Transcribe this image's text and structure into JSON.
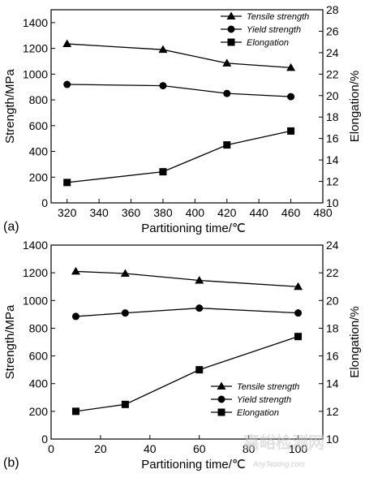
{
  "chart_data": [
    {
      "type": "line",
      "panel_label": "(a)",
      "xlabel": "Partitioning time/℃",
      "ylabel_left": "Strength/MPa",
      "ylabel_right": "Elongation/%",
      "xlim": [
        310,
        480
      ],
      "x_ticks": [
        320,
        340,
        360,
        380,
        400,
        420,
        440,
        460,
        480
      ],
      "ylim_left": [
        0,
        1500
      ],
      "y_ticks_left": [
        0,
        200,
        400,
        600,
        800,
        1000,
        1200,
        1400
      ],
      "ylim_right": [
        10,
        28
      ],
      "y_ticks_right": [
        10,
        12,
        14,
        16,
        18,
        20,
        22,
        24,
        26,
        28
      ],
      "legend_position": "top-right",
      "x": [
        320,
        380,
        420,
        460
      ],
      "series": [
        {
          "name": "Tensile strength",
          "axis": "left",
          "marker": "triangle",
          "values": [
            1235,
            1190,
            1085,
            1050
          ]
        },
        {
          "name": "Yield strength",
          "axis": "left",
          "marker": "circle",
          "values": [
            920,
            910,
            850,
            825
          ]
        },
        {
          "name": "Elongation",
          "axis": "right",
          "marker": "square",
          "values": [
            11.9,
            12.9,
            15.4,
            16.7
          ]
        }
      ]
    },
    {
      "type": "line",
      "panel_label": "(b)",
      "xlabel": "Partitioning time/℃",
      "ylabel_left": "Strength/MPa",
      "ylabel_right": "Elongation/%",
      "xlim": [
        0,
        110
      ],
      "x_ticks": [
        0,
        20,
        40,
        60,
        80,
        100
      ],
      "ylim_left": [
        0,
        1400
      ],
      "y_ticks_left": [
        0,
        200,
        400,
        600,
        800,
        1000,
        1200,
        1400
      ],
      "ylim_right": [
        10,
        24
      ],
      "y_ticks_right": [
        10,
        12,
        14,
        16,
        18,
        20,
        22,
        24
      ],
      "legend_position": "bottom-right",
      "x": [
        10,
        30,
        60,
        100
      ],
      "series": [
        {
          "name": "Tensile strength",
          "axis": "left",
          "marker": "triangle",
          "values": [
            1210,
            1195,
            1145,
            1100
          ]
        },
        {
          "name": "Yield strength",
          "axis": "left",
          "marker": "circle",
          "values": [
            885,
            910,
            945,
            910
          ]
        },
        {
          "name": "Elongation",
          "axis": "right",
          "marker": "square",
          "values": [
            12.0,
            12.5,
            15.0,
            17.4
          ]
        }
      ]
    }
  ],
  "watermark": {
    "text": "嘉峪检测网",
    "subtext": "AnyTesting.com"
  }
}
